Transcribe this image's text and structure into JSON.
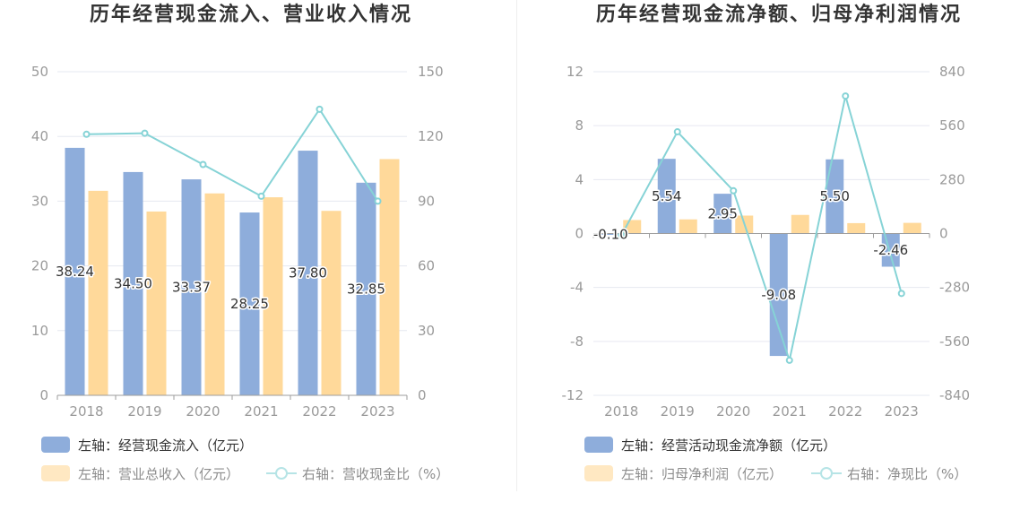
{
  "chart_data": [
    {
      "type": "bar",
      "title": "历年经营现金流入、营业收入情况",
      "categories": [
        "2018",
        "2019",
        "2020",
        "2021",
        "2022",
        "2023"
      ],
      "y_left": {
        "min": 0,
        "max": 50,
        "ticks": [
          0,
          10,
          20,
          30,
          40,
          50
        ]
      },
      "y_right": {
        "min": 0,
        "max": 150,
        "ticks": [
          0,
          30,
          60,
          90,
          120,
          150
        ]
      },
      "series": [
        {
          "name": "左轴：经营现金流入（亿元）",
          "color": "#8eaddb",
          "values": [
            38.24,
            34.5,
            33.37,
            28.25,
            37.8,
            32.85
          ],
          "labels": [
            "38.24",
            "34.50",
            "33.37",
            "28.25",
            "37.80",
            "32.85"
          ]
        },
        {
          "name": "左轴：营业总收入（亿元）",
          "color": "#ffd99a",
          "values": [
            31.6,
            28.4,
            31.2,
            30.6,
            28.5,
            36.5
          ]
        }
      ],
      "line_series": {
        "name": "右轴：营收现金比（%）",
        "color": "#86d3d6",
        "values": [
          121.0,
          121.5,
          107.0,
          92.3,
          132.6,
          90.0
        ]
      }
    },
    {
      "type": "bar",
      "title": "历年经营现金流净额、归母净利润情况",
      "categories": [
        "2018",
        "2019",
        "2020",
        "2021",
        "2022",
        "2023"
      ],
      "y_left": {
        "min": -12,
        "max": 12,
        "ticks": [
          -12,
          -8,
          -4,
          0,
          4,
          8,
          12
        ]
      },
      "y_right": {
        "min": -840,
        "max": 840,
        "ticks": [
          -840,
          -560,
          -280,
          0,
          280,
          560,
          840
        ]
      },
      "series": [
        {
          "name": "左轴：经营活动现金流净额（亿元）",
          "color": "#8eaddb",
          "values": [
            -0.1,
            5.54,
            2.95,
            -9.08,
            5.5,
            -2.46
          ],
          "labels": [
            "-0.10",
            "5.54",
            "2.95",
            "-9.08",
            "5.50",
            "-2.46"
          ]
        },
        {
          "name": "左轴：归母净利润（亿元）",
          "color": "#ffd99a",
          "values": [
            1.0,
            1.05,
            1.33,
            1.38,
            0.77,
            0.79
          ]
        }
      ],
      "line_series": {
        "name": "右轴：净现比（%）",
        "color": "#86d3d6",
        "values": [
          -10,
          528,
          222,
          -658,
          714,
          -311
        ]
      }
    }
  ]
}
